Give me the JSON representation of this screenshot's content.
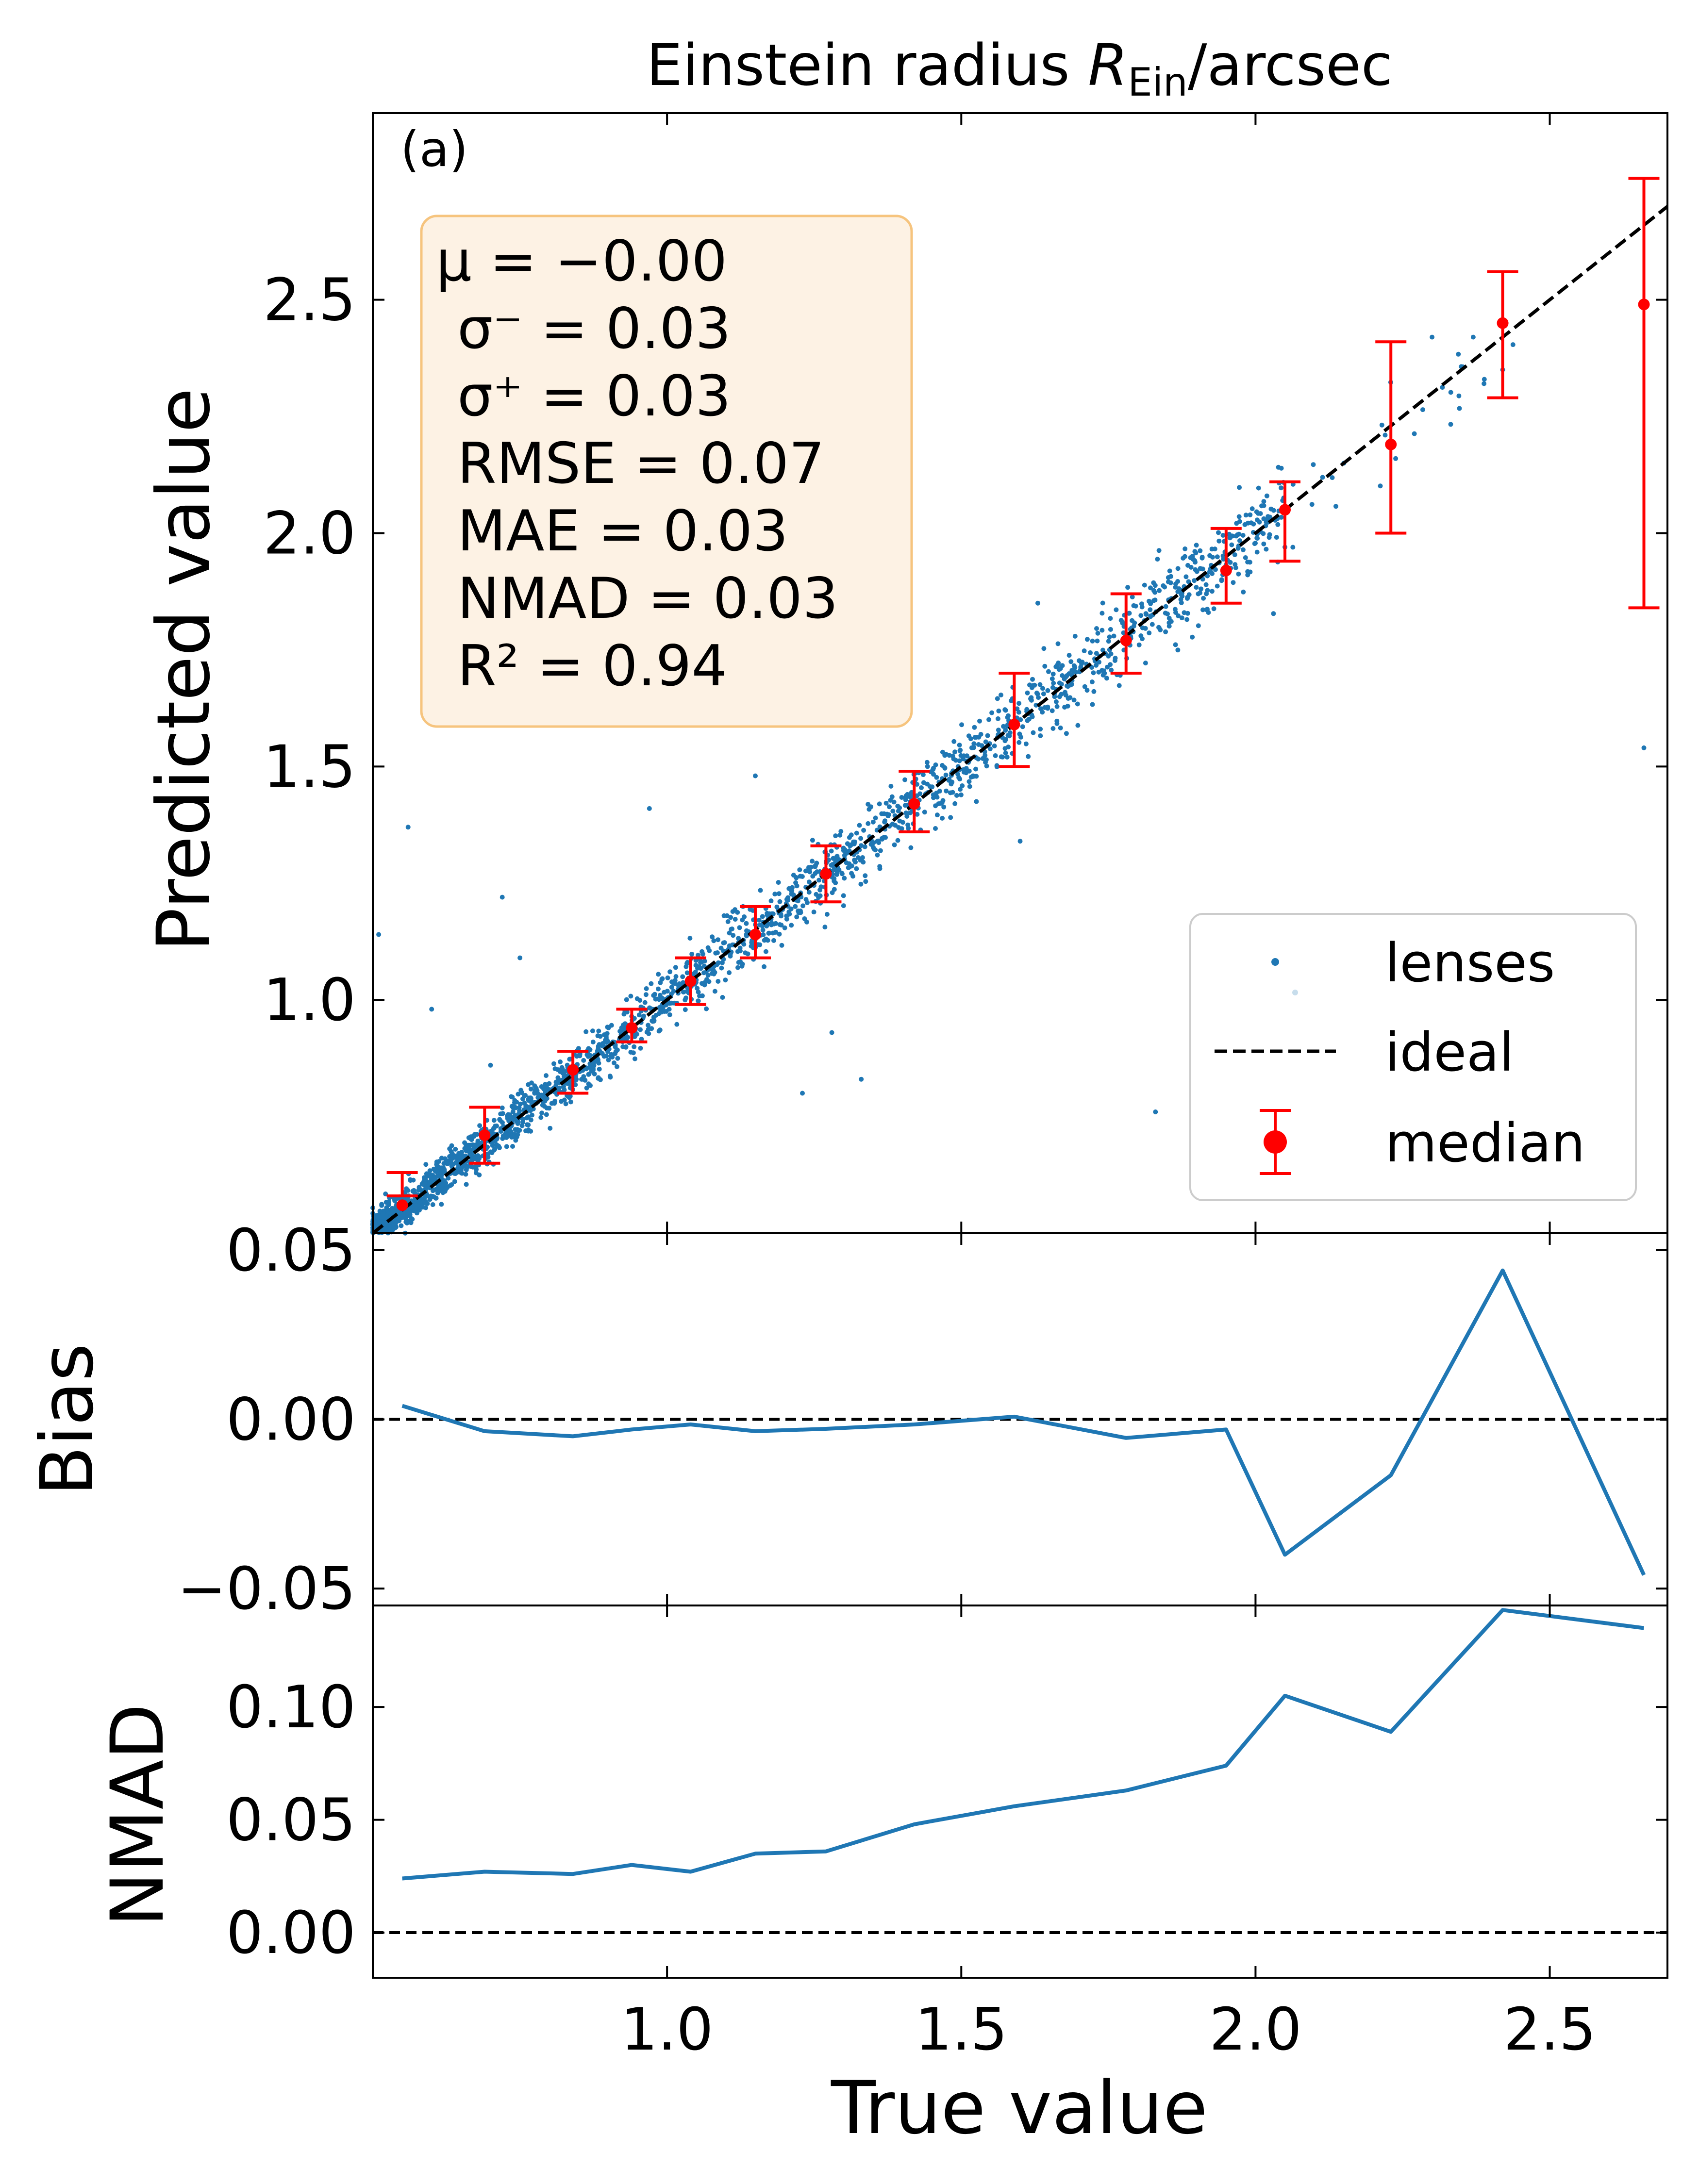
{
  "figure": {
    "title": "Einstein radius R_Ein/arcsec",
    "title_main": "Einstein radius ",
    "title_sym": "R",
    "title_sub": "Ein",
    "title_tail": "/arcsec",
    "panel_label": "(a)"
  },
  "stats": {
    "lines": [
      "μ = −0.00",
      "σ⁻ = 0.03",
      "σ⁺ = 0.03",
      "RMSE  = 0.07",
      "MAE  = 0.03",
      "NMAD  = 0.03",
      "R² = 0.94"
    ],
    "box_fill": "#fdf2e4",
    "box_edge": "#f6c47e"
  },
  "legend": {
    "position": "lower-right",
    "items": [
      {
        "label": "lenses",
        "kind": "scatter",
        "color": "#1f77b4"
      },
      {
        "label": "ideal",
        "kind": "dashed-line",
        "color": "#000000"
      },
      {
        "label": "median",
        "kind": "errorbar",
        "color": "#ff0000"
      }
    ]
  },
  "colors": {
    "scatter": "#1f77b4",
    "median": "#ff0000",
    "ideal": "#000000",
    "line": "#1f77b4"
  },
  "chart_data": [
    {
      "type": "scatter",
      "panel": "main",
      "xlabel": "",
      "ylabel": "Predicted value",
      "xlim": [
        0.5,
        2.7
      ],
      "ylim": [
        0.5,
        2.9
      ],
      "xticks": [
        1.0,
        1.5,
        2.0,
        2.5
      ],
      "yticks": [
        1.0,
        1.5,
        2.0,
        2.5
      ],
      "ytick_labels": [
        "1.0",
        "1.5",
        "2.0",
        "2.5"
      ],
      "grid": false,
      "ideal_line": {
        "from": [
          0.5,
          0.5
        ],
        "to": [
          2.7,
          2.7
        ],
        "style": "dashed"
      },
      "median": {
        "x": [
          0.55,
          0.69,
          0.84,
          0.94,
          1.04,
          1.15,
          1.27,
          1.42,
          1.59,
          1.78,
          1.95,
          2.05,
          2.23,
          2.42,
          2.66
        ],
        "y": [
          0.56,
          0.71,
          0.85,
          0.94,
          1.04,
          1.14,
          1.27,
          1.42,
          1.59,
          1.77,
          1.92,
          2.05,
          2.19,
          2.45,
          2.49
        ],
        "err_low": [
          0.58,
          0.65,
          0.8,
          0.91,
          0.99,
          1.09,
          1.21,
          1.36,
          1.5,
          1.7,
          1.85,
          1.94,
          2.0,
          2.29,
          1.84
        ],
        "err_high": [
          0.63,
          0.77,
          0.89,
          0.98,
          1.09,
          1.2,
          1.33,
          1.49,
          1.7,
          1.87,
          2.01,
          2.11,
          2.41,
          2.56,
          2.76
        ]
      },
      "lenses_outliers": [
        {
          "x": 0.51,
          "y": 1.14
        },
        {
          "x": 0.56,
          "y": 1.37
        },
        {
          "x": 0.6,
          "y": 0.98
        },
        {
          "x": 0.7,
          "y": 0.86
        },
        {
          "x": 0.72,
          "y": 1.22
        },
        {
          "x": 0.75,
          "y": 1.09
        },
        {
          "x": 0.97,
          "y": 1.41
        },
        {
          "x": 1.15,
          "y": 1.48
        },
        {
          "x": 1.23,
          "y": 0.8
        },
        {
          "x": 1.28,
          "y": 0.93
        },
        {
          "x": 1.33,
          "y": 0.83
        },
        {
          "x": 1.52,
          "y": 1.48
        },
        {
          "x": 1.6,
          "y": 1.34
        },
        {
          "x": 1.63,
          "y": 1.85
        },
        {
          "x": 1.83,
          "y": 0.76
        },
        {
          "x": 1.88,
          "y": 1.95
        },
        {
          "x": 1.92,
          "y": 1.83
        },
        {
          "x": 2.05,
          "y": 1.97
        },
        {
          "x": 2.15,
          "y": 2.15
        },
        {
          "x": 2.3,
          "y": 2.42
        },
        {
          "x": 2.37,
          "y": 2.42
        },
        {
          "x": 2.42,
          "y": 2.35
        },
        {
          "x": 2.66,
          "y": 1.54
        }
      ]
    },
    {
      "type": "line",
      "panel": "bias",
      "ylabel": "Bias",
      "xlim": [
        0.5,
        2.7
      ],
      "ylim": [
        -0.055,
        0.055
      ],
      "yticks": [
        -0.05,
        0.0,
        0.05
      ],
      "ytick_labels": [
        "−0.05",
        "0.00",
        "0.05"
      ],
      "reference_line": 0.0,
      "x": [
        0.55,
        0.69,
        0.84,
        0.94,
        1.04,
        1.15,
        1.27,
        1.42,
        1.59,
        1.78,
        1.95,
        2.05,
        2.23,
        2.42,
        2.66
      ],
      "y": [
        0.004,
        -0.0035,
        -0.005,
        -0.003,
        -0.0015,
        -0.0035,
        -0.0028,
        -0.0015,
        0.0008,
        -0.0055,
        -0.003,
        -0.04,
        -0.0165,
        0.044,
        -0.046
      ]
    },
    {
      "type": "line",
      "panel": "nmad",
      "xlabel": "True value",
      "ylabel": "NMAD",
      "xlim": [
        0.5,
        2.7
      ],
      "ylim": [
        -0.02,
        0.145
      ],
      "xticks": [
        1.0,
        1.5,
        2.0,
        2.5
      ],
      "xtick_labels": [
        "1.0",
        "1.5",
        "2.0",
        "2.5"
      ],
      "yticks": [
        0.0,
        0.05,
        0.1
      ],
      "ytick_labels": [
        "0.00",
        "0.05",
        "0.10"
      ],
      "reference_line": 0.0,
      "x": [
        0.55,
        0.69,
        0.84,
        0.94,
        1.04,
        1.15,
        1.27,
        1.42,
        1.59,
        1.78,
        1.95,
        2.05,
        2.23,
        2.42,
        2.66
      ],
      "y": [
        0.024,
        0.027,
        0.026,
        0.03,
        0.027,
        0.035,
        0.036,
        0.048,
        0.056,
        0.063,
        0.074,
        0.105,
        0.089,
        0.143,
        0.135
      ]
    }
  ]
}
